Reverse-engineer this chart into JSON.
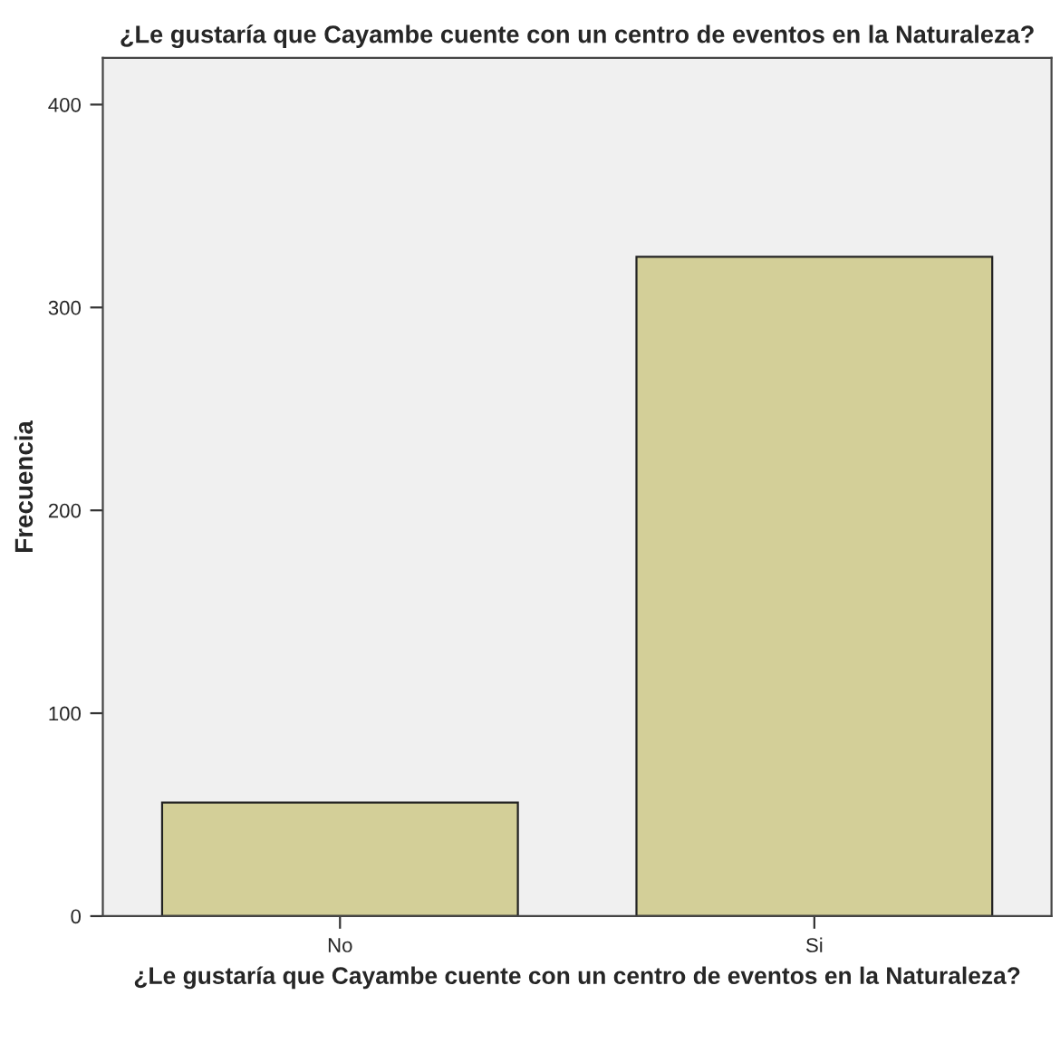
{
  "chart_data": {
    "type": "bar",
    "title": "¿Le gustaría que Cayambe cuente con un centro de eventos en la Naturaleza?",
    "xlabel": "¿Le gustaría que Cayambe cuente con un centro de eventos en la Naturaleza?",
    "ylabel": "Frecuencia",
    "categories": [
      "No",
      "Si"
    ],
    "values": [
      56,
      325
    ],
    "color": "#d3cf98",
    "ylim": [
      0,
      423
    ],
    "yticks": [
      0,
      100,
      200,
      300,
      400
    ],
    "grid": false
  }
}
